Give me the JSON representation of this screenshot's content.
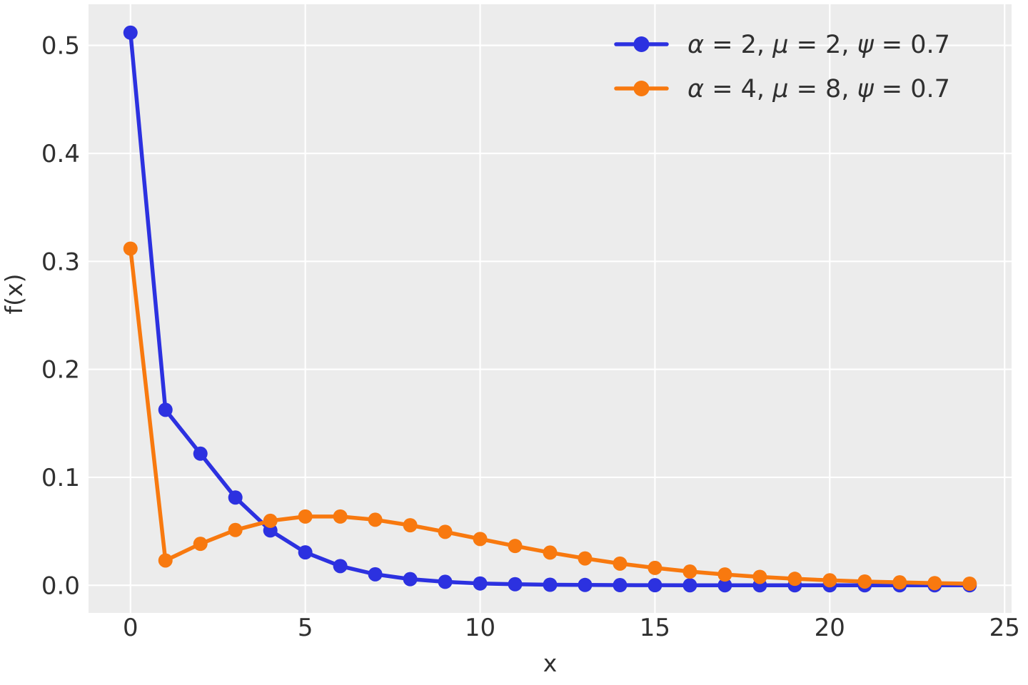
{
  "figure": {
    "background": "#ffffff"
  },
  "chart_data": {
    "type": "line",
    "title": "",
    "xlabel": "x",
    "ylabel": "f(x)",
    "x": [
      0,
      1,
      2,
      3,
      4,
      5,
      6,
      7,
      8,
      9,
      10,
      11,
      12,
      13,
      14,
      15,
      16,
      17,
      18,
      19,
      20,
      21,
      22,
      23,
      24
    ],
    "series": [
      {
        "name": "α = 2, μ = 2, ψ = 0.7",
        "color": "#2c31e0",
        "marker": "circle",
        "values": [
          0.5118,
          0.1625,
          0.1219,
          0.0813,
          0.0508,
          0.0305,
          0.0178,
          0.0102,
          0.0057,
          0.0032,
          0.0017,
          0.001,
          0.0005,
          0.0003,
          0.00015,
          8e-05,
          4e-05,
          2e-05,
          1e-05,
          6e-06,
          3e-06,
          1.7e-06,
          9e-07,
          5e-07,
          2e-07
        ]
      },
      {
        "name": "α = 4, μ = 8, ψ = 0.7",
        "color": "#f8790f",
        "marker": "circle",
        "values": [
          0.3118,
          0.023,
          0.0384,
          0.0512,
          0.0597,
          0.0637,
          0.0637,
          0.0607,
          0.0556,
          0.0495,
          0.0429,
          0.0364,
          0.0303,
          0.0249,
          0.0201,
          0.0161,
          0.0127,
          0.01,
          0.0078,
          0.006,
          0.0046,
          0.0035,
          0.0027,
          0.002,
          0.0015
        ]
      }
    ],
    "xticks": {
      "values": [
        0,
        5,
        10,
        15,
        20,
        25
      ],
      "labels": [
        "0",
        "5",
        "10",
        "15",
        "20",
        "25"
      ]
    },
    "yticks": {
      "values": [
        0,
        0.1,
        0.2,
        0.3,
        0.4,
        0.5
      ],
      "labels": [
        "0.0",
        "0.1",
        "0.2",
        "0.3",
        "0.4",
        "0.5"
      ]
    },
    "xlim": [
      -1.2,
      25.2
    ],
    "ylim": [
      -0.0256,
      0.5381
    ],
    "grid": true,
    "legend": {
      "position": "upper right",
      "frame": false
    },
    "style": {
      "plot_bg": "#ececec",
      "grid_color": "#ffffff",
      "grid_width": 2.2,
      "text_color": "#303030",
      "line_width": 5.5,
      "marker_radius": 10,
      "legend_marker_radius": 11,
      "tick_font_size": 34,
      "label_font_size": 33,
      "legend_font_size": 35
    }
  }
}
